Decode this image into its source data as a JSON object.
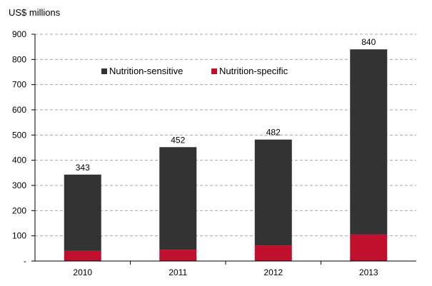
{
  "chart_data": {
    "type": "bar",
    "stacked": true,
    "title": "",
    "xlabel": "",
    "ylabel": "US$ millions",
    "categories": [
      "2010",
      "2011",
      "2012",
      "2013"
    ],
    "series": [
      {
        "name": "Nutrition-specific",
        "color": "#c0102e",
        "values": [
          40,
          45,
          62,
          105
        ]
      },
      {
        "name": "Nutrition-sensitive",
        "color": "#333333",
        "values": [
          303,
          407,
          420,
          735
        ]
      }
    ],
    "totals": [
      343,
      452,
      482,
      840
    ],
    "total_labels": [
      "343",
      "452",
      "482",
      "840"
    ],
    "ylim": [
      0,
      900
    ],
    "yticks": [
      0,
      100,
      200,
      300,
      400,
      500,
      600,
      700,
      800,
      900
    ],
    "ytick_labels": [
      "-",
      "100",
      "200",
      "300",
      "400",
      "500",
      "600",
      "700",
      "800",
      "900"
    ],
    "grid": true,
    "grid_style": "dashed",
    "legend": {
      "placement": "top-left-inside",
      "items": [
        {
          "name": "Nutrition-sensitive",
          "color": "#333333"
        },
        {
          "name": "Nutrition-specific",
          "color": "#c0102e"
        }
      ]
    }
  }
}
